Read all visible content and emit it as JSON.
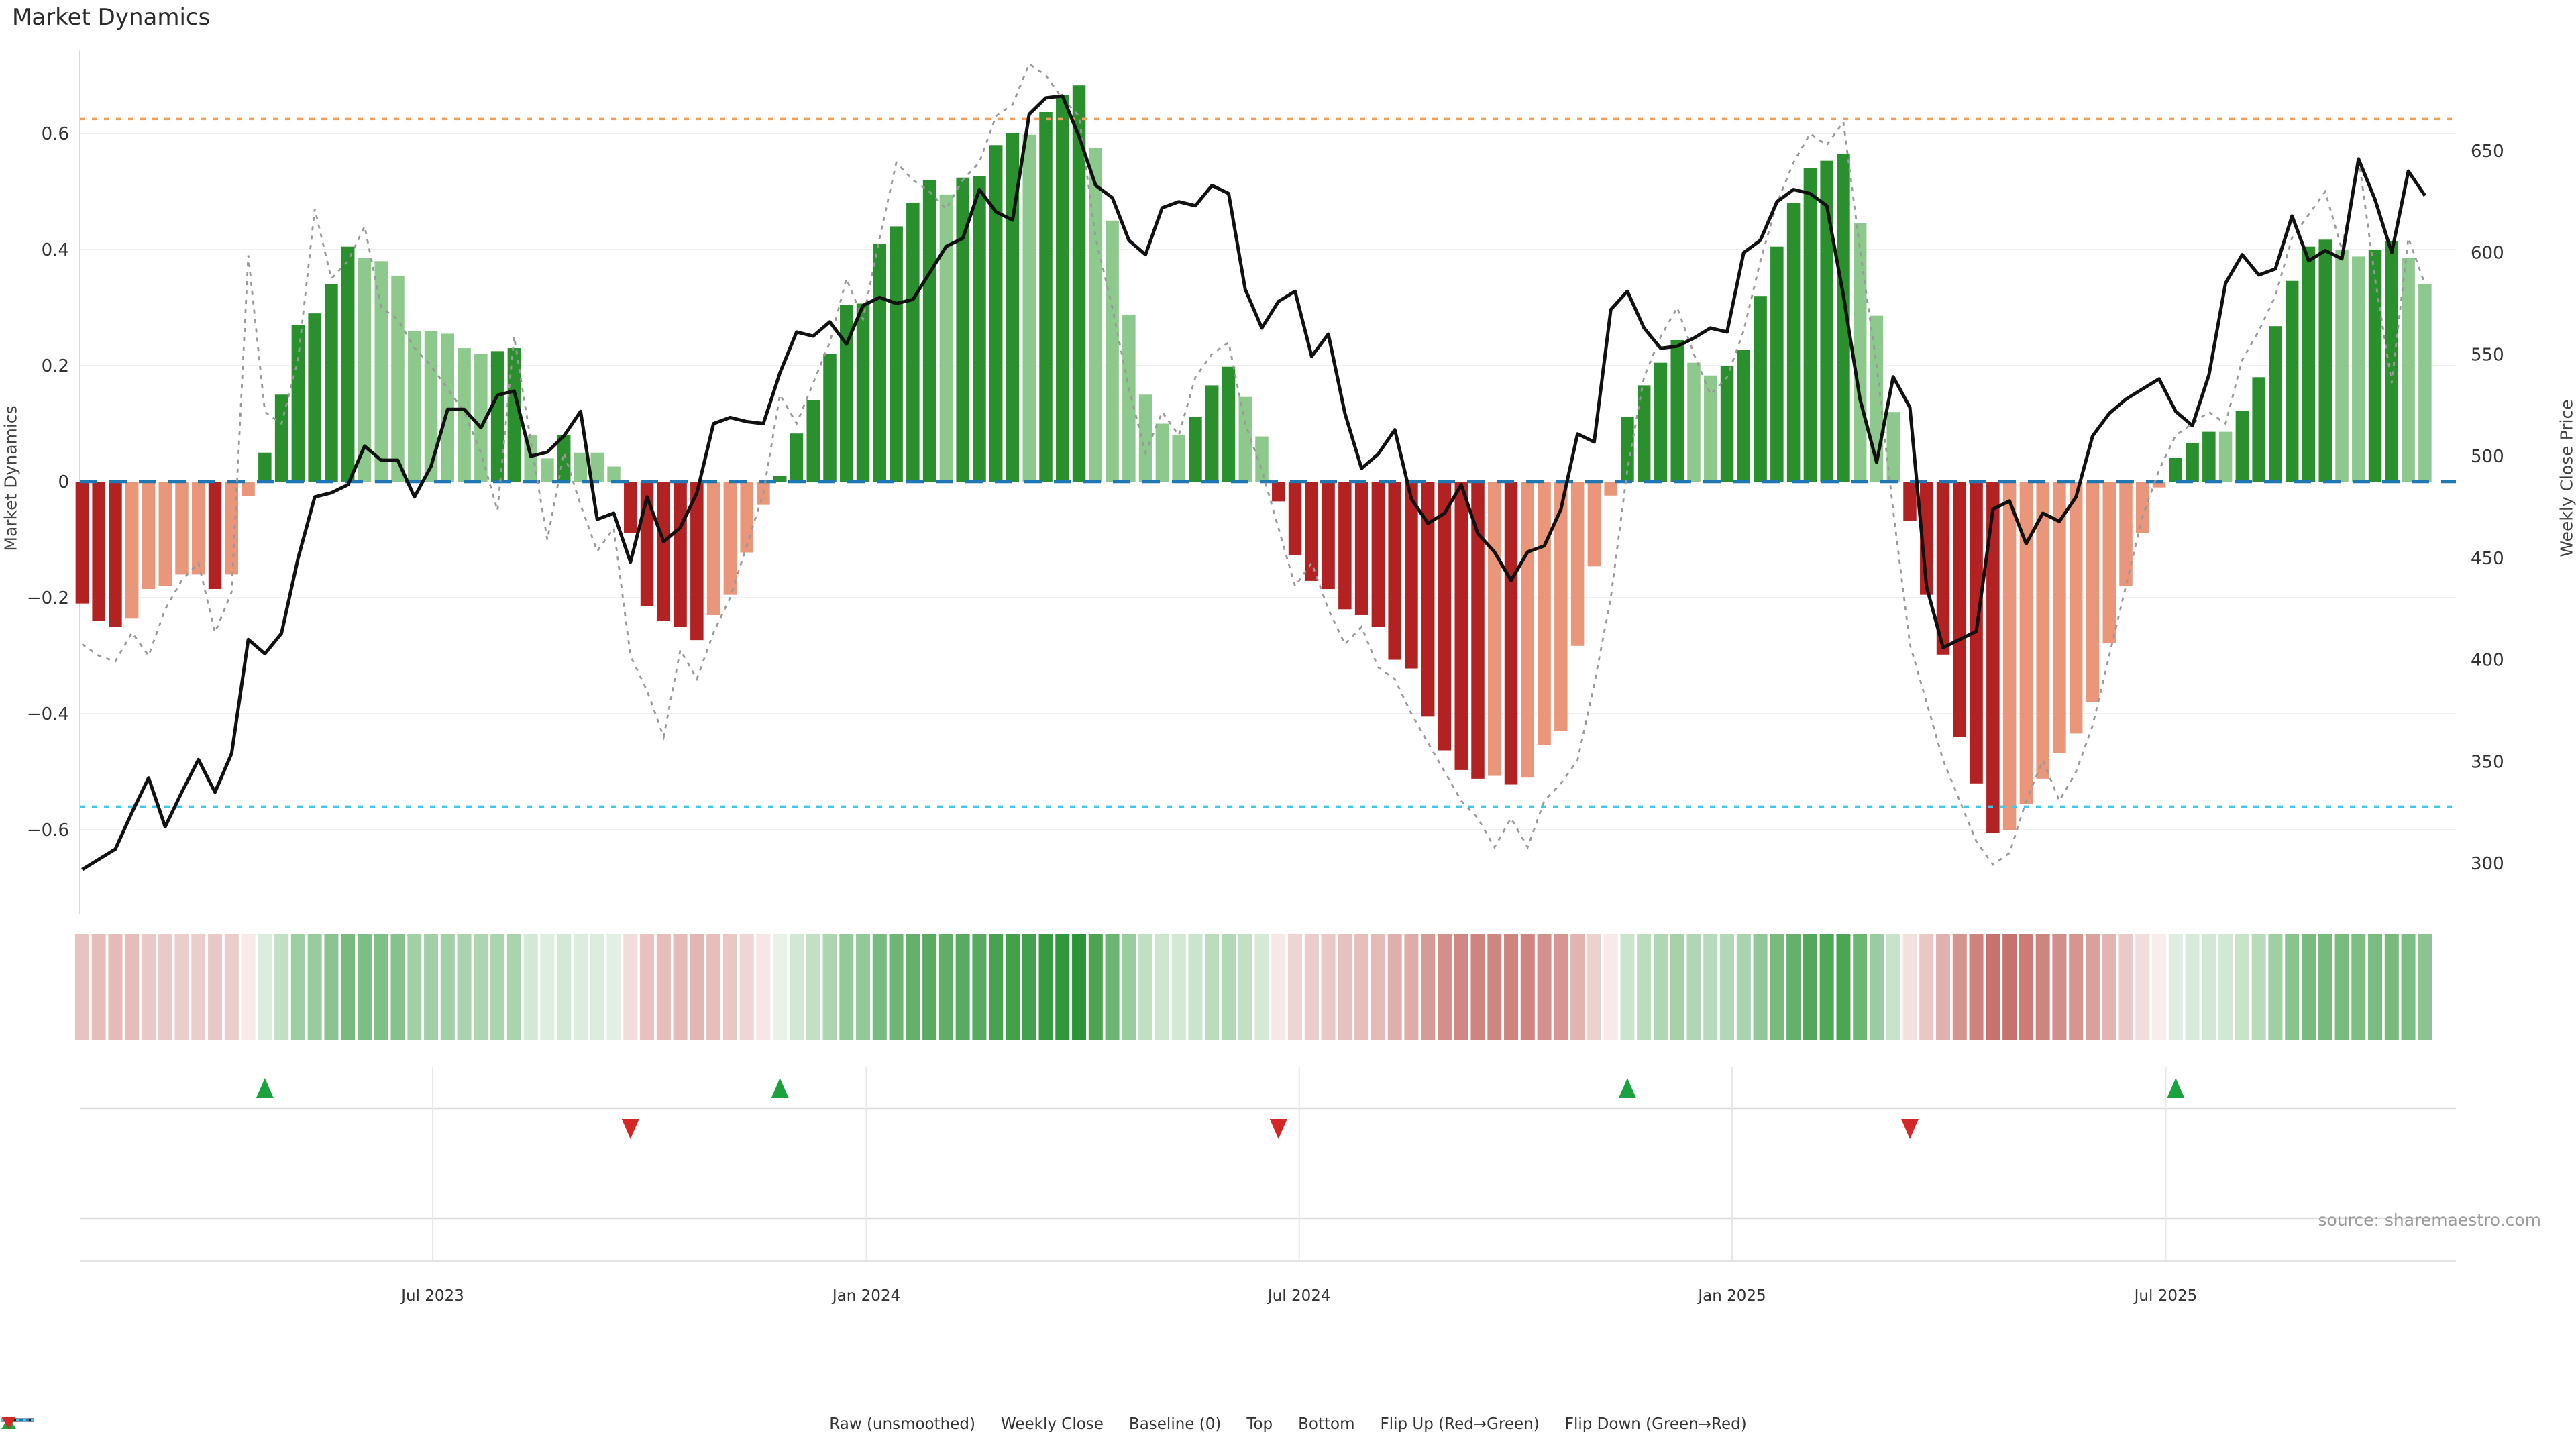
{
  "title": "Market Dynamics",
  "source": "source: sharemaestro.com",
  "axes": {
    "left_label": "Market Dynamics",
    "right_label": "Weekly Close Price"
  },
  "legend": {
    "items": [
      {
        "label": "Raw (unsmoothed)",
        "symbol": "dotted-gray-line"
      },
      {
        "label": "Weekly Close",
        "symbol": "solid-black-line"
      },
      {
        "label": "Baseline (0)",
        "symbol": "dashed-blue-line"
      },
      {
        "label": "Top",
        "symbol": "dotted-orange-line"
      },
      {
        "label": "Bottom",
        "symbol": "dotted-cyan-line"
      },
      {
        "label": "Flip Up (Red→Green)",
        "symbol": "green-up-triangle"
      },
      {
        "label": "Flip Down (Green→Red)",
        "symbol": "red-down-triangle"
      }
    ]
  },
  "colors": {
    "bar_up_strong": "#2a8f2d",
    "bar_up_soft": "#8dc98d",
    "bar_down_strong": "#b22222",
    "bar_down_soft": "#e9967a",
    "weekly_close": "#111111",
    "raw_line": "#999999",
    "baseline": "#1f77b4",
    "top_line": "#f2a05a",
    "bottom_line": "#40c8e8",
    "flip_up": "#1aa23e",
    "flip_down": "#d62728",
    "heat_up": "#279231",
    "heat_down": "#bf5e58",
    "grid": "#eef0f4",
    "panel_grid": "#dcdcdc",
    "tick_text": "#333333"
  },
  "chart_data": {
    "type": "bar",
    "subtype": "combo_bar_line_heatmap",
    "title": "Market Dynamics",
    "x": {
      "unit": "week",
      "count": 142,
      "ticks": [
        {
          "label": "Jul 2023",
          "week": 21.1
        },
        {
          "label": "Jan 2024",
          "week": 47.2
        },
        {
          "label": "Jul 2024",
          "week": 73.25
        },
        {
          "label": "Jan 2025",
          "week": 99.3
        },
        {
          "label": "Jul 2025",
          "week": 125.4
        }
      ]
    },
    "left_axis": {
      "label": "Market Dynamics",
      "ticks": [
        0.6,
        0.4,
        0.2,
        0,
        -0.2,
        -0.4,
        -0.6
      ],
      "range": [
        -0.745,
        0.745
      ]
    },
    "right_axis": {
      "label": "Weekly Close Price",
      "ticks": [
        650,
        600,
        550,
        500,
        450,
        400,
        350,
        300
      ],
      "range": [
        275,
        700
      ]
    },
    "reference_lines": [
      {
        "name": "Baseline (0)",
        "value": 0,
        "style": "dashed",
        "color": "baseline"
      },
      {
        "name": "Top",
        "value": 0.625,
        "style": "dotted",
        "color": "top_line"
      },
      {
        "name": "Bottom",
        "value": -0.56,
        "style": "dotted",
        "color": "bottom_line"
      }
    ],
    "markers": {
      "flip_up_weeks": [
        11,
        42,
        93,
        126
      ],
      "flip_down_weeks": [
        33,
        72,
        110
      ]
    },
    "heatmap": {
      "description": "weekly strip shaded red-to-green by Market Dynamics value",
      "source_series": "Market Dynamics"
    },
    "series": [
      {
        "name": "Market Dynamics",
        "type": "bar",
        "axis": "left",
        "shading_rule": "strong shade when |value| grows vs previous week or sign flips; soft shade when fading",
        "values": [
          -0.21,
          -0.24,
          -0.25,
          -0.235,
          -0.185,
          -0.18,
          -0.16,
          -0.16,
          -0.185,
          -0.16,
          -0.025,
          0.05,
          0.15,
          0.27,
          0.29,
          0.34,
          0.405,
          0.385,
          0.38,
          0.355,
          0.26,
          0.26,
          0.255,
          0.23,
          0.22,
          0.225,
          0.23,
          0.08,
          0.04,
          0.08,
          0.05,
          0.05,
          0.026,
          -0.088,
          -0.215,
          -0.24,
          -0.25,
          -0.273,
          -0.23,
          -0.195,
          -0.122,
          -0.04,
          0.01,
          0.083,
          0.14,
          0.22,
          0.305,
          0.307,
          0.41,
          0.44,
          0.48,
          0.52,
          0.495,
          0.524,
          0.526,
          0.58,
          0.6,
          0.598,
          0.637,
          0.667,
          0.683,
          0.575,
          0.45,
          0.288,
          0.15,
          0.1,
          0.081,
          0.112,
          0.166,
          0.198,
          0.146,
          0.078,
          -0.034,
          -0.127,
          -0.171,
          -0.185,
          -0.22,
          -0.23,
          -0.25,
          -0.307,
          -0.322,
          -0.405,
          -0.463,
          -0.497,
          -0.512,
          -0.507,
          -0.522,
          -0.51,
          -0.454,
          -0.43,
          -0.283,
          -0.146,
          -0.024,
          0.112,
          0.166,
          0.205,
          0.244,
          0.205,
          0.183,
          0.2,
          0.227,
          0.32,
          0.405,
          0.48,
          0.54,
          0.553,
          0.565,
          0.446,
          0.286,
          0.12,
          -0.068,
          -0.195,
          -0.298,
          -0.44,
          -0.52,
          -0.605,
          -0.6,
          -0.555,
          -0.512,
          -0.468,
          -0.434,
          -0.38,
          -0.278,
          -0.18,
          -0.088,
          -0.01,
          0.041,
          0.066,
          0.086,
          0.086,
          0.122,
          0.18,
          0.268,
          0.346,
          0.405,
          0.417,
          0.4,
          0.388,
          0.4,
          0.415,
          0.385,
          0.34
        ]
      },
      {
        "name": "Raw (unsmoothed)",
        "type": "line",
        "style": "dotted",
        "axis": "left",
        "values": [
          -0.28,
          -0.3,
          -0.31,
          -0.26,
          -0.3,
          -0.22,
          -0.17,
          -0.14,
          -0.26,
          -0.19,
          0.39,
          0.12,
          0.1,
          0.21,
          0.47,
          0.35,
          0.38,
          0.44,
          0.3,
          0.28,
          0.23,
          0.2,
          0.16,
          0.12,
          0.05,
          -0.05,
          0.25,
          0.07,
          -0.1,
          0.05,
          -0.04,
          -0.12,
          -0.08,
          -0.3,
          -0.36,
          -0.44,
          -0.29,
          -0.34,
          -0.26,
          -0.2,
          -0.11,
          -0.02,
          0.15,
          0.1,
          0.17,
          0.24,
          0.35,
          0.28,
          0.42,
          0.55,
          0.52,
          0.5,
          0.47,
          0.52,
          0.55,
          0.63,
          0.65,
          0.72,
          0.7,
          0.66,
          0.63,
          0.42,
          0.3,
          0.16,
          0.05,
          0.12,
          0.08,
          0.18,
          0.22,
          0.24,
          0.1,
          0.02,
          -0.08,
          -0.18,
          -0.14,
          -0.22,
          -0.28,
          -0.25,
          -0.32,
          -0.34,
          -0.4,
          -0.45,
          -0.5,
          -0.55,
          -0.58,
          -0.63,
          -0.58,
          -0.63,
          -0.55,
          -0.52,
          -0.48,
          -0.35,
          -0.2,
          0.02,
          0.18,
          0.25,
          0.3,
          0.22,
          0.15,
          0.18,
          0.26,
          0.38,
          0.48,
          0.55,
          0.6,
          0.58,
          0.62,
          0.4,
          0.2,
          -0.05,
          -0.28,
          -0.38,
          -0.48,
          -0.55,
          -0.62,
          -0.66,
          -0.64,
          -0.55,
          -0.48,
          -0.55,
          -0.5,
          -0.42,
          -0.3,
          -0.18,
          -0.06,
          0.02,
          0.08,
          0.1,
          0.12,
          0.1,
          0.21,
          0.26,
          0.32,
          0.42,
          0.46,
          0.5,
          0.4,
          0.56,
          0.35,
          0.17,
          0.42,
          0.34
        ]
      },
      {
        "name": "Weekly Close",
        "type": "line",
        "style": "solid",
        "axis": "right",
        "values": [
          297,
          302,
          307,
          325,
          342,
          318,
          335,
          351,
          335,
          354,
          410,
          403,
          413,
          450,
          480,
          482,
          486,
          505,
          498,
          498,
          480,
          495,
          523,
          523,
          514,
          530,
          532,
          500,
          502,
          510,
          522,
          469,
          472,
          448,
          480,
          458,
          465,
          482,
          516,
          519,
          517,
          516,
          541,
          561,
          559,
          566,
          555,
          574,
          578,
          575,
          577,
          590,
          603,
          607,
          631,
          620,
          616,
          668,
          676,
          677,
          657,
          633,
          627,
          606,
          599,
          622,
          625,
          623,
          633,
          629,
          582,
          563,
          576,
          581,
          549,
          560,
          521,
          494,
          501,
          513,
          479,
          467,
          472,
          486,
          462,
          453,
          439,
          453,
          456,
          474,
          511,
          507,
          572,
          581,
          563,
          553,
          554,
          558,
          563,
          561,
          600,
          606,
          625,
          631,
          629,
          623,
          579,
          528,
          497,
          539,
          524,
          436,
          406,
          410,
          414,
          474,
          478,
          457,
          472,
          468,
          480,
          510,
          521,
          528,
          533,
          538,
          522,
          515,
          540,
          585,
          599,
          589,
          592,
          618,
          596,
          601,
          597,
          646,
          626,
          600,
          640,
          628
        ]
      }
    ]
  }
}
